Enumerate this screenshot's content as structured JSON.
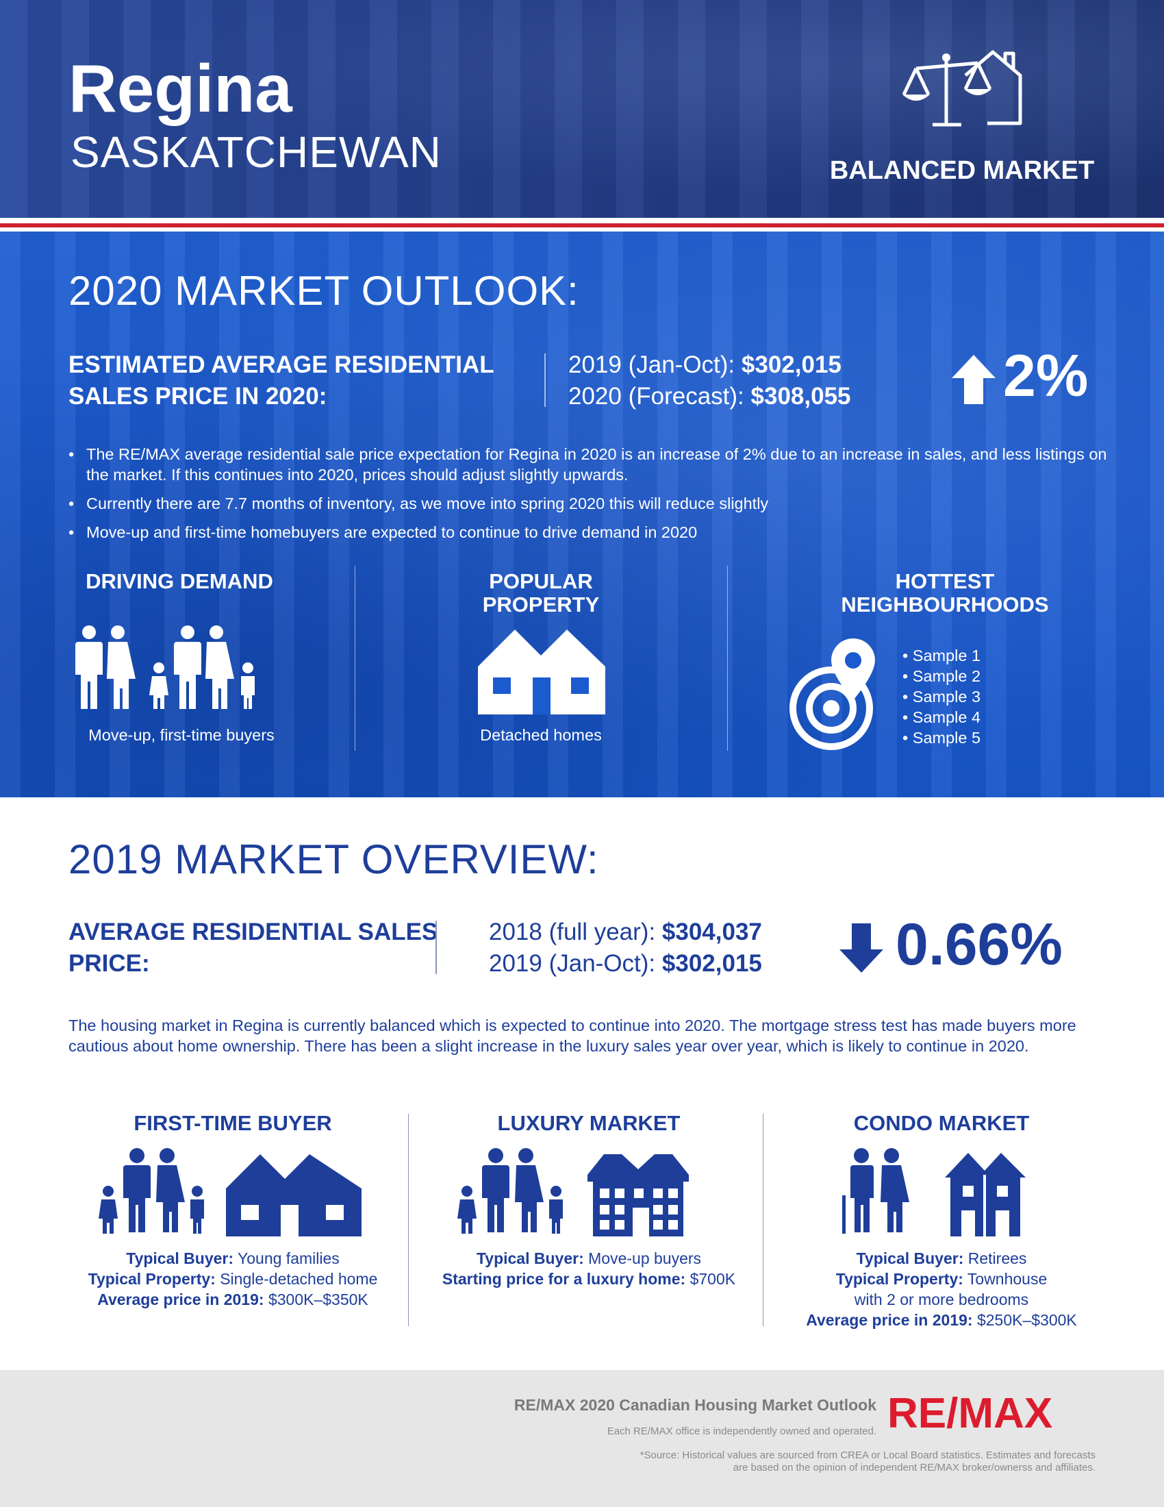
{
  "header": {
    "city": "Regina",
    "province": "SASKATCHEWAN",
    "market_status": "BALANCED MARKET",
    "market_icon": "scales-house-icon"
  },
  "outlook": {
    "title": "2020 MARKET OUTLOOK:",
    "estimate_label": "ESTIMATED AVERAGE RESIDENTIAL SALES PRICE IN 2020:",
    "row1_label": "2019 (Jan-Oct):",
    "row1_value": "$302,015",
    "row2_label": "2020 (Forecast):",
    "row2_value": "$308,055",
    "change_direction": "up",
    "change_value": "2%",
    "bullets": [
      "The RE/MAX average residential sale price expectation for Regina in 2020 is an increase of 2% due to an increase in sales, and less listings on the market. If this continues into 2020, prices should adjust slightly upwards.",
      "Currently there are 7.7 months of inventory, as we move into spring 2020 this will reduce slightly",
      "Move-up and first-time homebuyers are expected to continue to drive demand in 2020"
    ],
    "driving_demand": {
      "title": "DRIVING DEMAND",
      "caption": "Move-up, first-time buyers",
      "icon": "families-icon"
    },
    "popular_property": {
      "title": "POPULAR PROPERTY",
      "caption": "Detached homes",
      "icon": "detached-house-icon"
    },
    "hottest_neighbourhoods": {
      "title": "HOTTEST NEIGHBOURHOODS",
      "icon": "location-target-icon",
      "items": [
        "Sample 1",
        "Sample 2",
        "Sample 3",
        "Sample 4",
        "Sample 5"
      ]
    }
  },
  "overview": {
    "title": "2019 MARKET OVERVIEW:",
    "price_label": "AVERAGE RESIDENTIAL SALES PRICE:",
    "row1_label": "2018 (full year):",
    "row1_value": "$304,037",
    "row2_label": "2019 (Jan-Oct):",
    "row2_value": "$302,015",
    "change_direction": "down",
    "change_value": "0.66%",
    "paragraph": "The housing market in Regina is currently balanced which is expected to continue into 2020. The mortgage stress test has made buyers more cautious about home ownership. There has been a slight increase in the luxury sales year over year, which is likely to continue in 2020.",
    "segments": {
      "first_time": {
        "title": "FIRST-TIME BUYER",
        "lines": [
          {
            "label": "Typical Buyer:",
            "value": "Young families"
          },
          {
            "label": "Typical Property:",
            "value": "Single-detached home"
          },
          {
            "label": "Average price in 2019:",
            "value": "$300K–$350K"
          }
        ]
      },
      "luxury": {
        "title": "LUXURY MARKET",
        "lines": [
          {
            "label": "Typical Buyer:",
            "value": "Move-up buyers"
          },
          {
            "label": "Starting price for a luxury home:",
            "value": "$700K"
          }
        ]
      },
      "condo": {
        "title": "CONDO MARKET",
        "lines": [
          {
            "label": "Typical Buyer:",
            "value": "Retirees"
          },
          {
            "label": "Typical Property:",
            "value": "Townhouse"
          },
          {
            "label": "",
            "value": "with 2 or more bedrooms"
          },
          {
            "label": "Average price in 2019:",
            "value": "$250K–$300K"
          }
        ]
      }
    }
  },
  "footer": {
    "title": "RE/MAX 2020 Canadian Housing Market Outlook",
    "subtitle": "Each RE/MAX office is independently owned and operated.",
    "source_line1": "*Source: Historical values are sourced from CREA or Local Board statistics. Estimates and forecasts",
    "source_line2": "are based on the opinion of independent RE/MAX broker/ownerss and affiliates.",
    "logo_text": "RE/MAX",
    "colors": {
      "brand_red": "#dc1c2e",
      "brand_blue": "#1e3e9a"
    }
  }
}
